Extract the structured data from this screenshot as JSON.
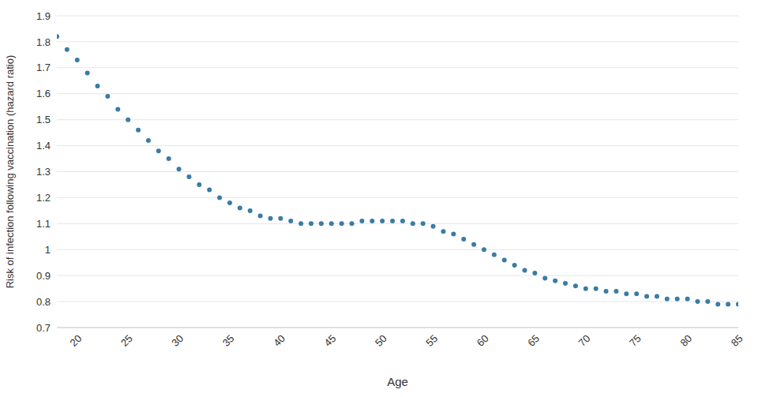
{
  "chart_data": {
    "type": "scatter",
    "x_label": "Age",
    "y_label": "Risk of infection following vaccination (hazard ratio)",
    "x": [
      18,
      19,
      20,
      21,
      22,
      23,
      24,
      25,
      26,
      27,
      28,
      29,
      30,
      31,
      32,
      33,
      34,
      35,
      36,
      37,
      38,
      39,
      40,
      41,
      42,
      43,
      44,
      45,
      46,
      47,
      48,
      49,
      50,
      51,
      52,
      53,
      54,
      55,
      56,
      57,
      58,
      59,
      60,
      61,
      62,
      63,
      64,
      65,
      66,
      67,
      68,
      69,
      70,
      71,
      72,
      73,
      74,
      75,
      76,
      77,
      78,
      79,
      80,
      81,
      82,
      83,
      84,
      85
    ],
    "values": [
      1.82,
      1.77,
      1.73,
      1.68,
      1.63,
      1.59,
      1.54,
      1.5,
      1.46,
      1.42,
      1.38,
      1.35,
      1.31,
      1.28,
      1.25,
      1.23,
      1.2,
      1.18,
      1.16,
      1.15,
      1.13,
      1.12,
      1.12,
      1.11,
      1.1,
      1.1,
      1.1,
      1.1,
      1.1,
      1.1,
      1.11,
      1.11,
      1.11,
      1.11,
      1.11,
      1.1,
      1.1,
      1.09,
      1.07,
      1.06,
      1.04,
      1.02,
      1.0,
      0.98,
      0.96,
      0.94,
      0.92,
      0.91,
      0.89,
      0.88,
      0.87,
      0.86,
      0.85,
      0.85,
      0.84,
      0.84,
      0.83,
      0.83,
      0.82,
      0.82,
      0.81,
      0.81,
      0.81,
      0.8,
      0.8,
      0.79,
      0.79,
      0.79
    ],
    "color": "#3a7ca5",
    "marker": "circle",
    "xlim": [
      18,
      85
    ],
    "xticks": [
      20,
      25,
      30,
      35,
      40,
      45,
      50,
      55,
      60,
      65,
      70,
      75,
      80,
      85
    ],
    "ylim": [
      0.7,
      1.9
    ],
    "yticks": [
      0.7,
      0.8,
      0.9,
      1,
      1.1,
      1.2,
      1.3,
      1.4,
      1.5,
      1.6,
      1.7,
      1.8,
      1.9
    ],
    "grid": true
  }
}
